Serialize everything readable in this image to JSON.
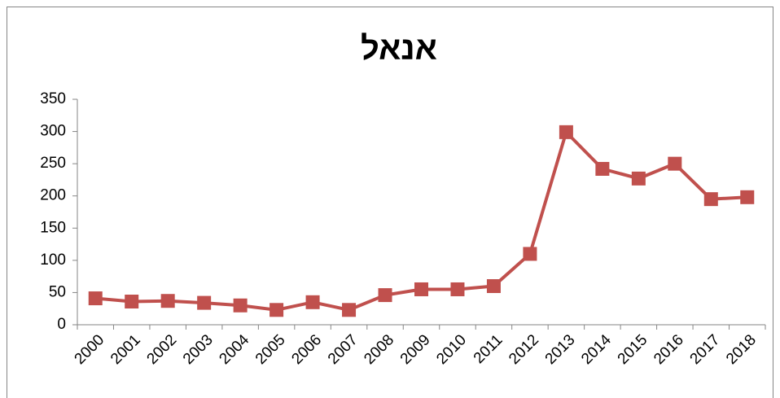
{
  "chart_data": {
    "type": "line",
    "title": "אנאל",
    "categories": [
      "2000",
      "2001",
      "2002",
      "2003",
      "2004",
      "2005",
      "2006",
      "2007",
      "2008",
      "2009",
      "2010",
      "2011",
      "2012",
      "2013",
      "2014",
      "2015",
      "2016",
      "2017",
      "2018"
    ],
    "series": [
      {
        "color": "#c0504d",
        "values": [
          41,
          36,
          37,
          34,
          30,
          23,
          35,
          23,
          46,
          55,
          55,
          60,
          110,
          299,
          242,
          227,
          250,
          195,
          198
        ]
      }
    ],
    "ylim": [
      0,
      350
    ],
    "yticks": [
      0,
      50,
      100,
      150,
      200,
      250,
      300,
      350
    ],
    "grid": false
  }
}
